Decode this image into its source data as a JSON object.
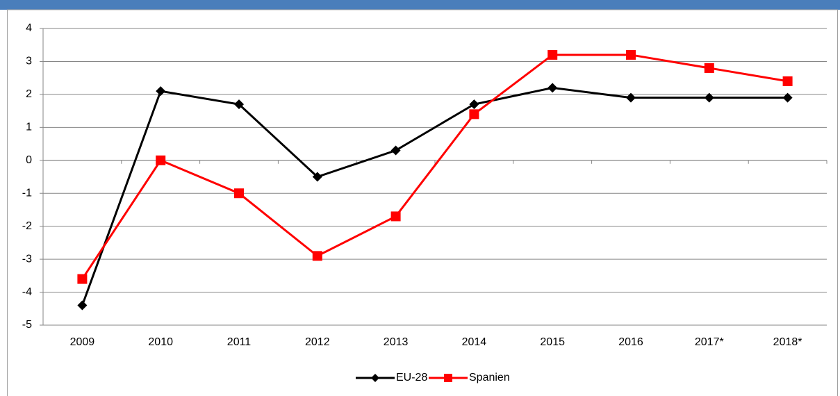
{
  "chart_data": {
    "type": "line",
    "categories": [
      "2009",
      "2010",
      "2011",
      "2012",
      "2013",
      "2014",
      "2015",
      "2016",
      "2017*",
      "2018*"
    ],
    "series": [
      {
        "name": "EU-28",
        "color": "#000000",
        "marker": "diamond",
        "values": [
          -4.4,
          2.1,
          1.7,
          -0.5,
          0.3,
          1.7,
          2.2,
          1.9,
          1.9,
          1.9
        ]
      },
      {
        "name": "Spanien",
        "color": "#ff0000",
        "marker": "square",
        "values": [
          -3.6,
          0.0,
          -1.0,
          -2.9,
          -1.7,
          1.4,
          3.2,
          3.2,
          2.8,
          2.4
        ]
      }
    ],
    "ylim": [
      -5,
      4
    ],
    "yticks": [
      -5,
      -4,
      -3,
      -2,
      -1,
      0,
      1,
      2,
      3,
      4
    ],
    "grid": true,
    "legend": "bottom"
  }
}
